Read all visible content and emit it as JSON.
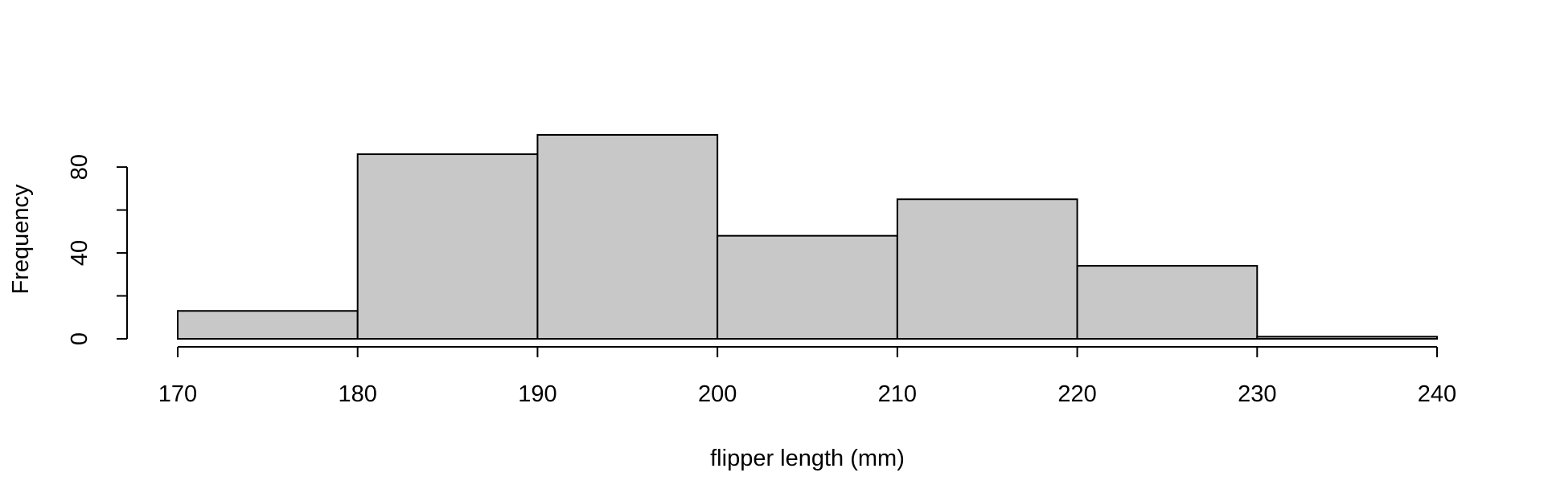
{
  "chart_data": {
    "type": "histogram",
    "title": "",
    "xlabel": "flipper length (mm)",
    "ylabel": "Frequency",
    "bins": [
      {
        "start": 170,
        "end": 180,
        "count": 13
      },
      {
        "start": 180,
        "end": 190,
        "count": 86
      },
      {
        "start": 190,
        "end": 200,
        "count": 95
      },
      {
        "start": 200,
        "end": 210,
        "count": 48
      },
      {
        "start": 210,
        "end": 220,
        "count": 65
      },
      {
        "start": 220,
        "end": 230,
        "count": 34
      },
      {
        "start": 230,
        "end": 240,
        "count": 1
      }
    ],
    "xlim": [
      170,
      240
    ],
    "ylim": [
      0,
      95
    ],
    "x_ticks": [
      170,
      180,
      190,
      200,
      210,
      220,
      230,
      240
    ],
    "x_tick_labels": [
      "170",
      "180",
      "190",
      "200",
      "210",
      "220",
      "230",
      "240"
    ],
    "y_ticks": [
      0,
      20,
      40,
      60,
      80
    ],
    "y_tick_labels": [
      "0",
      "40",
      "80"
    ],
    "y_labeled_ticks": [
      0,
      40,
      80
    ],
    "grid": false,
    "colors": {
      "bar_fill": "#c8c8c8",
      "bar_stroke": "#000000"
    }
  }
}
